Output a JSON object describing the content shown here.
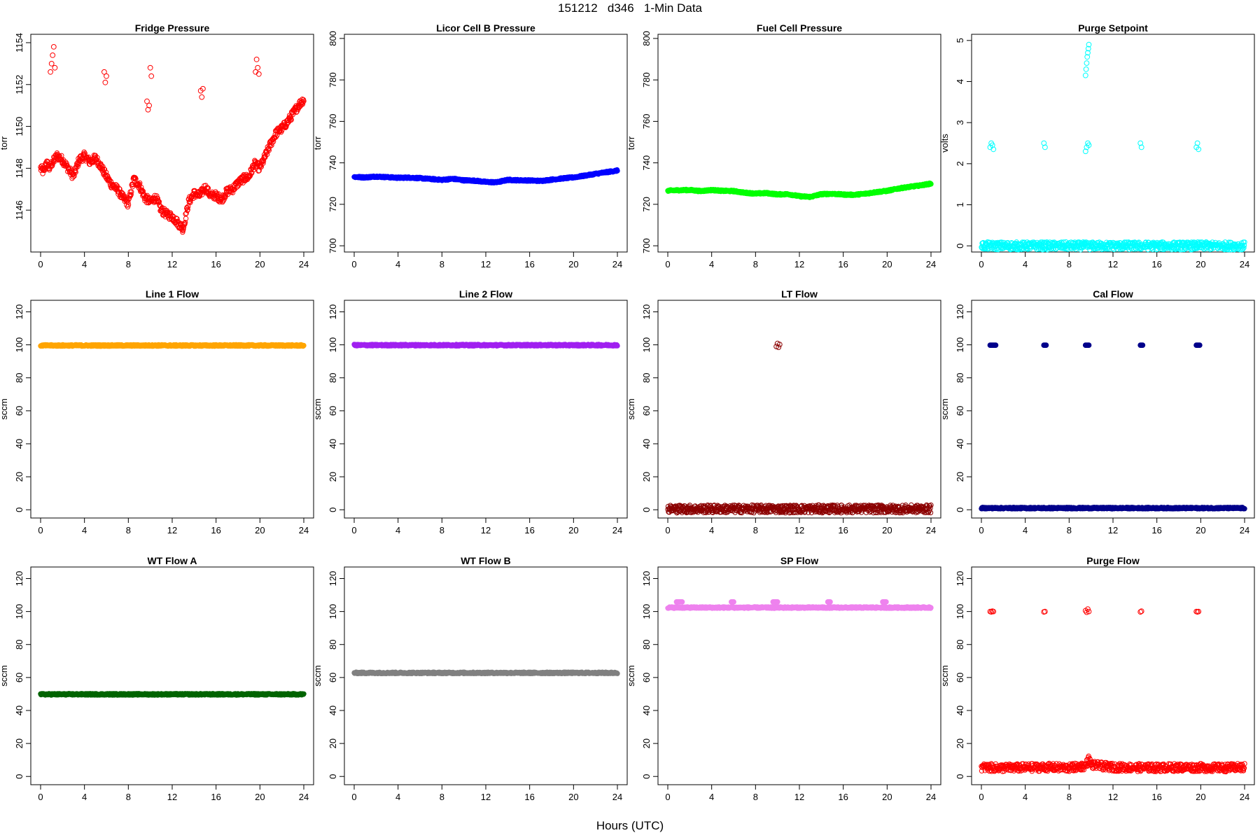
{
  "title": "151212   d346   1-Min Data",
  "xlabel": "Hours (UTC)",
  "chart_data": [
    {
      "type": "scatter",
      "title": "Fridge Pressure",
      "ylabel": "torr",
      "xlim": [
        0,
        24
      ],
      "ylim": [
        1144,
        1154.4
      ],
      "xticks": [
        0,
        4,
        8,
        12,
        16,
        20,
        24
      ],
      "yticks": [
        1146,
        1148,
        1150,
        1152,
        1154
      ],
      "color": "#ff0000",
      "marker": "open-circle",
      "series": [
        {
          "x": [
            0.0,
            0.3,
            0.5,
            0.8,
            1.0,
            1.5,
            2.0,
            2.5,
            3.0,
            3.5,
            4.0,
            4.5,
            5.0,
            5.5,
            6.0,
            6.5,
            7.0,
            7.5,
            8.0,
            8.5,
            9.0,
            9.5,
            10.0,
            10.5,
            11.0,
            11.5,
            12.0,
            12.5,
            13.0,
            13.5,
            14.0,
            14.5,
            15.0,
            15.5,
            16.0,
            16.5,
            17.0,
            17.5,
            18.0,
            18.5,
            19.0,
            19.5,
            20.0,
            20.5,
            21.0,
            21.5,
            22.0,
            22.5,
            23.0,
            23.5,
            24.0
          ],
          "y": [
            1148.0,
            1147.8,
            1148.3,
            1148.0,
            1148.2,
            1148.6,
            1148.4,
            1148.0,
            1147.6,
            1148.4,
            1148.6,
            1148.3,
            1148.5,
            1148.1,
            1147.6,
            1147.2,
            1147.0,
            1146.6,
            1146.3,
            1147.5,
            1147.2,
            1146.6,
            1146.4,
            1146.6,
            1146.0,
            1145.8,
            1145.7,
            1145.4,
            1145.1,
            1146.4,
            1146.8,
            1146.7,
            1147.1,
            1146.7,
            1146.7,
            1146.5,
            1146.9,
            1147.0,
            1147.3,
            1147.5,
            1147.6,
            1148.2,
            1148.0,
            1148.6,
            1149.2,
            1149.7,
            1149.9,
            1150.2,
            1150.6,
            1151.0,
            1151.3
          ]
        },
        {
          "x": [
            0.9,
            1.0,
            1.1,
            1.2,
            1.3,
            5.8,
            5.9,
            6.0,
            9.7,
            9.8,
            9.9,
            10.0,
            10.1,
            14.6,
            14.7,
            14.8,
            19.6,
            19.7,
            19.8,
            19.9
          ],
          "y": [
            1152.6,
            1153.0,
            1153.4,
            1153.8,
            1152.8,
            1152.6,
            1152.1,
            1152.4,
            1151.2,
            1150.8,
            1151.0,
            1152.8,
            1152.4,
            1151.7,
            1151.4,
            1151.8,
            1152.6,
            1153.2,
            1152.8,
            1152.5
          ]
        }
      ]
    },
    {
      "type": "scatter",
      "title": "Licor Cell B Pressure",
      "ylabel": "torr",
      "xlim": [
        0,
        24
      ],
      "ylim": [
        697,
        802
      ],
      "xticks": [
        0,
        4,
        8,
        12,
        16,
        20,
        24
      ],
      "yticks": [
        700,
        720,
        740,
        760,
        780,
        800
      ],
      "color": "#0000ff",
      "marker": "filled-band",
      "series": [
        {
          "x": [
            0,
            1,
            2,
            3,
            4,
            5,
            6,
            7,
            8,
            9,
            10,
            11,
            12,
            13,
            14,
            15,
            16,
            17,
            18,
            19,
            20,
            21,
            22,
            23,
            24
          ],
          "y": [
            733.2,
            733.0,
            733.4,
            733.1,
            732.8,
            732.9,
            732.6,
            732.2,
            731.8,
            732.3,
            731.6,
            731.4,
            730.8,
            730.6,
            731.8,
            731.6,
            731.5,
            731.3,
            731.9,
            732.5,
            733.0,
            733.8,
            734.7,
            735.5,
            736.3
          ]
        }
      ]
    },
    {
      "type": "scatter",
      "title": "Fuel Cell Pressure",
      "ylabel": "torr",
      "xlim": [
        0,
        24
      ],
      "ylim": [
        697,
        802
      ],
      "xticks": [
        0,
        4,
        8,
        12,
        16,
        20,
        24
      ],
      "yticks": [
        700,
        720,
        740,
        760,
        780,
        800
      ],
      "color": "#00ff00",
      "marker": "filled-band",
      "series": [
        {
          "x": [
            0,
            1,
            2,
            3,
            4,
            5,
            6,
            7,
            8,
            9,
            10,
            11,
            12,
            13,
            14,
            15,
            16,
            17,
            18,
            19,
            20,
            21,
            22,
            23,
            24
          ],
          "y": [
            726.6,
            726.8,
            726.9,
            726.4,
            726.9,
            726.5,
            726.4,
            725.6,
            725.2,
            725.4,
            724.8,
            724.9,
            723.9,
            723.6,
            724.9,
            725.1,
            724.7,
            724.6,
            725.1,
            725.9,
            726.5,
            727.6,
            728.4,
            729.1,
            730.0
          ]
        }
      ]
    },
    {
      "type": "scatter",
      "title": "Purge Setpoint",
      "ylabel": "volts",
      "xlim": [
        0,
        24
      ],
      "ylim": [
        -0.15,
        5.15
      ],
      "xticks": [
        0,
        4,
        8,
        12,
        16,
        20,
        24
      ],
      "yticks": [
        0,
        1,
        2,
        3,
        4,
        5
      ],
      "color": "#00ffff",
      "marker": "open-circle",
      "series": [
        {
          "x": [
            0,
            2,
            4,
            6,
            8,
            10,
            12,
            14,
            16,
            18,
            20,
            22,
            24
          ],
          "y": [
            0,
            0,
            0,
            0,
            0,
            0,
            0,
            0,
            0,
            0,
            0,
            0,
            0
          ]
        },
        {
          "x": [
            0.8,
            0.9,
            1.0,
            1.1,
            5.7,
            5.8,
            9.5,
            9.6,
            9.7,
            9.8,
            14.5,
            14.6,
            19.6,
            19.7,
            19.8
          ],
          "y": [
            2.4,
            2.5,
            2.45,
            2.35,
            2.5,
            2.4,
            2.3,
            2.4,
            2.5,
            2.45,
            2.5,
            2.4,
            2.4,
            2.5,
            2.35
          ]
        },
        {
          "x": [
            9.5,
            9.55,
            9.6,
            9.65,
            9.7,
            9.75,
            9.8
          ],
          "y": [
            4.15,
            4.3,
            4.45,
            4.6,
            4.7,
            4.8,
            4.9
          ]
        }
      ]
    },
    {
      "type": "scatter",
      "title": "Line 1 Flow",
      "ylabel": "sccm",
      "xlim": [
        0,
        24
      ],
      "ylim": [
        -5,
        127
      ],
      "xticks": [
        0,
        4,
        8,
        12,
        16,
        20,
        24
      ],
      "yticks": [
        0,
        20,
        40,
        60,
        80,
        100,
        120
      ],
      "color": "#ffa500",
      "marker": "filled-band",
      "series": [
        {
          "x": [
            0,
            24
          ],
          "y": [
            99.6,
            99.6
          ]
        }
      ]
    },
    {
      "type": "scatter",
      "title": "Line 2 Flow",
      "ylabel": "sccm",
      "xlim": [
        0,
        24
      ],
      "ylim": [
        -5,
        127
      ],
      "xticks": [
        0,
        4,
        8,
        12,
        16,
        20,
        24
      ],
      "yticks": [
        0,
        20,
        40,
        60,
        80,
        100,
        120
      ],
      "color": "#a020f0",
      "marker": "filled-band",
      "series": [
        {
          "x": [
            0,
            24
          ],
          "y": [
            99.8,
            99.8
          ]
        }
      ]
    },
    {
      "type": "scatter",
      "title": "LT Flow",
      "ylabel": "sccm",
      "xlim": [
        0,
        24
      ],
      "ylim": [
        -5,
        127
      ],
      "xticks": [
        0,
        4,
        8,
        12,
        16,
        20,
        24
      ],
      "yticks": [
        0,
        20,
        40,
        60,
        80,
        100,
        120
      ],
      "color": "#8b0000",
      "marker": "open-circle",
      "series": [
        {
          "x": [
            0,
            24
          ],
          "y": [
            0.5,
            0.5
          ]
        },
        {
          "x": [
            9.9,
            10.0,
            10.1,
            10.2
          ],
          "y": [
            99.0,
            100.8,
            98.5,
            100.2
          ]
        }
      ]
    },
    {
      "type": "scatter",
      "title": "Cal Flow",
      "ylabel": "sccm",
      "xlim": [
        0,
        24
      ],
      "ylim": [
        -5,
        127
      ],
      "xticks": [
        0,
        4,
        8,
        12,
        16,
        20,
        24
      ],
      "yticks": [
        0,
        20,
        40,
        60,
        80,
        100,
        120
      ],
      "color": "#00008b",
      "marker": "filled-band",
      "series": [
        {
          "x": [
            0,
            24
          ],
          "y": [
            1.0,
            1.0
          ]
        },
        {
          "x": [
            0.8,
            0.9,
            1.0,
            1.1,
            1.2,
            1.3,
            5.7,
            5.8,
            5.9,
            9.5,
            9.6,
            9.7,
            9.8,
            14.5,
            14.6,
            14.7,
            19.6,
            19.7,
            19.8,
            19.9
          ],
          "y": [
            99.8,
            99.8,
            99.8,
            99.8,
            99.8,
            99.8,
            99.8,
            99.8,
            99.8,
            99.8,
            99.8,
            99.8,
            99.8,
            99.8,
            99.8,
            99.8,
            99.8,
            99.8,
            99.8,
            99.8
          ]
        }
      ]
    },
    {
      "type": "scatter",
      "title": "WT Flow A",
      "ylabel": "sccm",
      "xlim": [
        0,
        24
      ],
      "ylim": [
        -5,
        127
      ],
      "xticks": [
        0,
        4,
        8,
        12,
        16,
        20,
        24
      ],
      "yticks": [
        0,
        20,
        40,
        60,
        80,
        100,
        120
      ],
      "color": "#006400",
      "marker": "filled-band",
      "series": [
        {
          "x": [
            0,
            24
          ],
          "y": [
            49.8,
            49.8
          ]
        }
      ]
    },
    {
      "type": "scatter",
      "title": "WT Flow B",
      "ylabel": "sccm",
      "xlim": [
        0,
        24
      ],
      "ylim": [
        -5,
        127
      ],
      "xticks": [
        0,
        4,
        8,
        12,
        16,
        20,
        24
      ],
      "yticks": [
        0,
        20,
        40,
        60,
        80,
        100,
        120
      ],
      "color": "#808080",
      "marker": "filled-band",
      "series": [
        {
          "x": [
            0,
            24
          ],
          "y": [
            62.8,
            62.8
          ]
        }
      ]
    },
    {
      "type": "scatter",
      "title": "SP Flow",
      "ylabel": "sccm",
      "xlim": [
        0,
        24
      ],
      "ylim": [
        -5,
        127
      ],
      "xticks": [
        0,
        4,
        8,
        12,
        16,
        20,
        24
      ],
      "yticks": [
        0,
        20,
        40,
        60,
        80,
        100,
        120
      ],
      "color": "#ee82ee",
      "marker": "filled-band",
      "series": [
        {
          "x": [
            0,
            24
          ],
          "y": [
            102.4,
            102.4
          ]
        },
        {
          "x": [
            0.8,
            0.9,
            1.0,
            1.1,
            1.2,
            1.3,
            5.8,
            5.9,
            6.0,
            9.6,
            9.7,
            9.8,
            9.9,
            10.0,
            14.6,
            14.7,
            14.8,
            19.6,
            19.7,
            19.8,
            19.9
          ],
          "y": [
            105.8,
            105.8,
            105.8,
            105.8,
            105.8,
            105.8,
            105.8,
            105.8,
            105.8,
            105.8,
            105.8,
            105.8,
            105.8,
            105.8,
            105.8,
            105.8,
            105.8,
            105.8,
            105.8,
            105.8,
            105.8
          ]
        }
      ]
    },
    {
      "type": "scatter",
      "title": "Purge Flow",
      "ylabel": "sccm",
      "xlim": [
        0,
        24
      ],
      "ylim": [
        -5,
        127
      ],
      "xticks": [
        0,
        4,
        8,
        12,
        16,
        20,
        24
      ],
      "yticks": [
        0,
        20,
        40,
        60,
        80,
        100,
        120
      ],
      "color": "#ff0000",
      "marker": "open-circle",
      "series": [
        {
          "x": [
            0,
            2,
            4,
            6,
            8,
            9.5,
            9.8,
            10.0,
            12,
            14,
            16,
            18,
            20,
            22,
            24
          ],
          "y": [
            5.5,
            5.2,
            5.4,
            5.6,
            5.2,
            6.5,
            10.5,
            7.0,
            5.6,
            5.4,
            5.3,
            5.5,
            5.4,
            5.2,
            5.5
          ]
        },
        {
          "x": [
            0.8,
            0.9,
            1.0,
            1.1,
            5.7,
            5.8,
            9.5,
            9.6,
            9.7,
            9.8,
            14.5,
            14.6,
            19.6,
            19.7,
            19.8
          ],
          "y": [
            100,
            99.8,
            100.2,
            100,
            99.8,
            100,
            100.5,
            99.6,
            101.5,
            100,
            99.8,
            100.2,
            100,
            99.8,
            100
          ]
        }
      ]
    }
  ]
}
